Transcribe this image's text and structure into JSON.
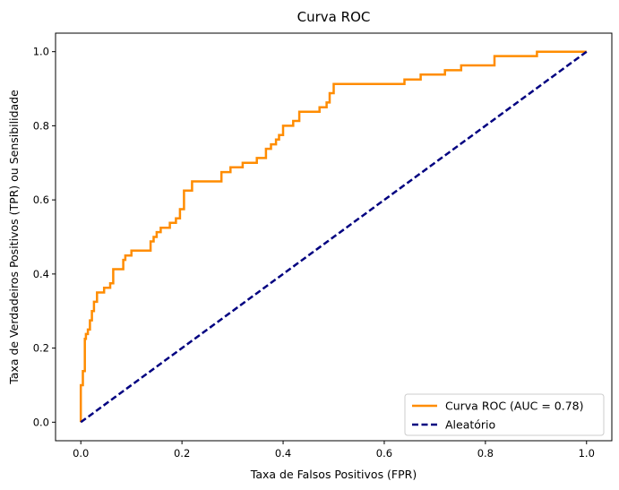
{
  "chart_data": {
    "type": "line",
    "title": "Curva ROC",
    "xlabel": "Taxa de Falsos Positivos (FPR)",
    "ylabel": "Taxa de Verdadeiros Positivos (TPR) ou Sensibilidade",
    "xlim": [
      -0.05,
      1.05
    ],
    "ylim": [
      -0.05,
      1.05
    ],
    "xticks": [
      "0.0",
      "0.2",
      "0.4",
      "0.6",
      "0.8",
      "1.0"
    ],
    "yticks": [
      "0.0",
      "0.2",
      "0.4",
      "0.6",
      "0.8",
      "1.0"
    ],
    "grid": false,
    "legend_position": "lower right",
    "series": [
      {
        "name": "Curva ROC (AUC = 0.78)",
        "color": "#ff8c00",
        "style": "solid",
        "x": [
          0.0,
          0.0,
          0.004,
          0.004,
          0.008,
          0.008,
          0.01,
          0.01,
          0.014,
          0.014,
          0.018,
          0.018,
          0.022,
          0.022,
          0.026,
          0.026,
          0.032,
          0.032,
          0.046,
          0.046,
          0.058,
          0.058,
          0.064,
          0.064,
          0.084,
          0.084,
          0.088,
          0.088,
          0.1,
          0.1,
          0.138,
          0.138,
          0.144,
          0.144,
          0.15,
          0.15,
          0.158,
          0.158,
          0.176,
          0.176,
          0.188,
          0.188,
          0.196,
          0.196,
          0.204,
          0.204,
          0.22,
          0.22,
          0.278,
          0.278,
          0.296,
          0.296,
          0.32,
          0.32,
          0.348,
          0.348,
          0.366,
          0.366,
          0.376,
          0.376,
          0.386,
          0.386,
          0.392,
          0.392,
          0.4,
          0.4,
          0.42,
          0.42,
          0.432,
          0.432,
          0.472,
          0.472,
          0.486,
          0.486,
          0.492,
          0.492,
          0.5,
          0.5,
          0.64,
          0.64,
          0.672,
          0.672,
          0.72,
          0.72,
          0.752,
          0.752,
          0.818,
          0.818,
          0.902,
          0.902,
          1.0
        ],
        "y": [
          0.0,
          0.1,
          0.1,
          0.138,
          0.138,
          0.225,
          0.225,
          0.238,
          0.238,
          0.25,
          0.25,
          0.275,
          0.275,
          0.3,
          0.3,
          0.325,
          0.325,
          0.35,
          0.35,
          0.363,
          0.363,
          0.375,
          0.375,
          0.413,
          0.413,
          0.438,
          0.438,
          0.45,
          0.45,
          0.463,
          0.463,
          0.488,
          0.488,
          0.5,
          0.5,
          0.513,
          0.513,
          0.525,
          0.525,
          0.538,
          0.538,
          0.55,
          0.55,
          0.575,
          0.575,
          0.625,
          0.625,
          0.65,
          0.65,
          0.675,
          0.675,
          0.688,
          0.688,
          0.7,
          0.7,
          0.713,
          0.713,
          0.738,
          0.738,
          0.75,
          0.75,
          0.763,
          0.763,
          0.775,
          0.775,
          0.8,
          0.8,
          0.813,
          0.813,
          0.838,
          0.838,
          0.85,
          0.85,
          0.863,
          0.863,
          0.888,
          0.888,
          0.913,
          0.913,
          0.925,
          0.925,
          0.938,
          0.938,
          0.95,
          0.95,
          0.963,
          0.963,
          0.988,
          0.988,
          1.0,
          1.0
        ]
      },
      {
        "name": "Aleatório",
        "color": "#000080",
        "style": "dashed",
        "x": [
          0.0,
          1.0
        ],
        "y": [
          0.0,
          1.0
        ]
      }
    ]
  }
}
